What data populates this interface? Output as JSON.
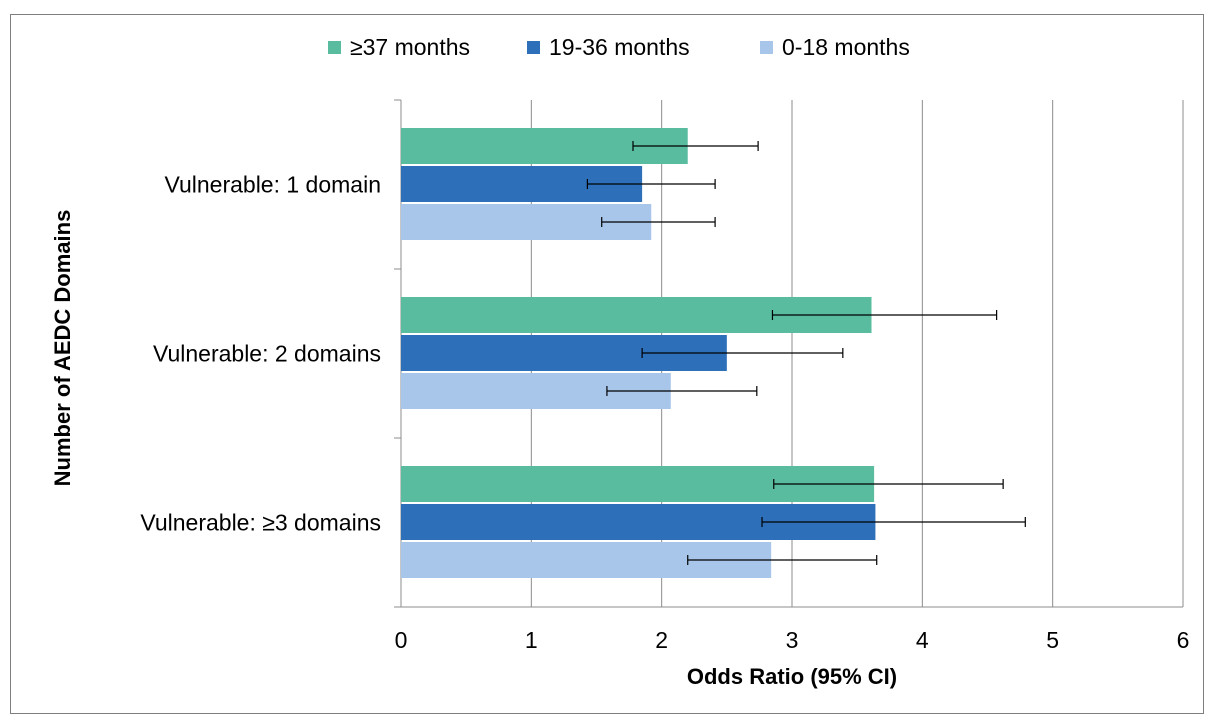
{
  "chart_data": {
    "type": "bar",
    "orientation": "horizontal",
    "title": "",
    "xlabel": "Odds Ratio (95% CI)",
    "ylabel": "Number of AEDC Domains",
    "xlim": [
      0,
      6
    ],
    "xticks": [
      "0",
      "1",
      "2",
      "3",
      "4",
      "5",
      "6"
    ],
    "grid": "vertical",
    "legend_position": "top",
    "categories": [
      "Vulnerable: 1 domain",
      "Vulnerable: 2 domains",
      "Vulnerable: ≥3 domains"
    ],
    "series": [
      {
        "name": "≥37 months",
        "color": "#59bc9f",
        "values": [
          2.2,
          3.61,
          3.63
        ],
        "ci_low": [
          1.78,
          2.85,
          2.86
        ],
        "ci_high": [
          2.74,
          4.57,
          4.62
        ]
      },
      {
        "name": "19-36 months",
        "color": "#2e6fba",
        "values": [
          1.85,
          2.5,
          3.64
        ],
        "ci_low": [
          1.43,
          1.85,
          2.77
        ],
        "ci_high": [
          2.41,
          3.39,
          4.79
        ]
      },
      {
        "name": "0-18 months",
        "color": "#a8c6ea",
        "values": [
          1.92,
          2.07,
          2.84
        ],
        "ci_low": [
          1.54,
          1.58,
          2.2
        ],
        "ci_high": [
          2.41,
          2.73,
          3.65
        ]
      }
    ]
  }
}
